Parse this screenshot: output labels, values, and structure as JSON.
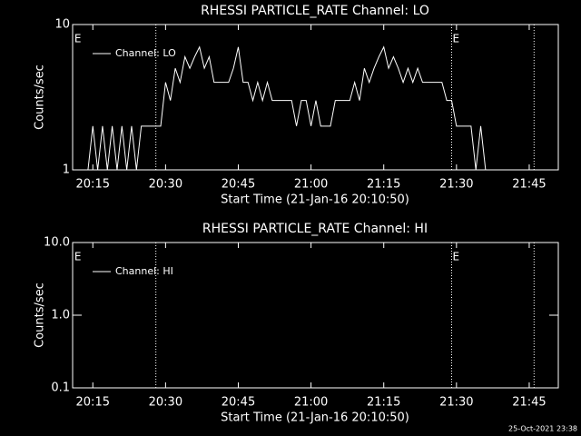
{
  "chart_data": [
    {
      "type": "line",
      "title": "RHESSI PARTICLE_RATE Channel: LO",
      "xlabel": "Start Time (21-Jan-16 20:10:50)",
      "ylabel": "Counts/sec",
      "log_y": true,
      "ylim": [
        1,
        10
      ],
      "yticks": [
        1,
        10
      ],
      "xlim": [
        "20:10:50",
        "21:51"
      ],
      "xticks": [
        "20:15",
        "20:30",
        "20:45",
        "21:00",
        "21:15",
        "21:30",
        "21:45"
      ],
      "legend": "upper left",
      "vlines": [
        "20:28",
        "21:29",
        "21:46"
      ],
      "annotations": [
        {
          "text": "E",
          "x": "20:11"
        },
        {
          "text": "E",
          "x": "21:29"
        }
      ],
      "series": [
        {
          "name": "Channel: LO",
          "color": "#ffffff",
          "x": [
            "20:14",
            "20:15",
            "20:16",
            "20:17",
            "20:18",
            "20:19",
            "20:20",
            "20:21",
            "20:22",
            "20:23",
            "20:24",
            "20:25",
            "20:26",
            "20:27",
            "20:28",
            "20:29",
            "20:30",
            "20:31",
            "20:32",
            "20:33",
            "20:34",
            "20:35",
            "20:36",
            "20:37",
            "20:38",
            "20:39",
            "20:40",
            "20:41",
            "20:42",
            "20:43",
            "20:44",
            "20:45",
            "20:46",
            "20:47",
            "20:48",
            "20:49",
            "20:50",
            "20:51",
            "20:52",
            "20:53",
            "20:54",
            "20:55",
            "20:56",
            "20:57",
            "20:58",
            "20:59",
            "21:00",
            "21:01",
            "21:02",
            "21:03",
            "21:04",
            "21:05",
            "21:06",
            "21:07",
            "21:08",
            "21:09",
            "21:10",
            "21:11",
            "21:12",
            "21:13",
            "21:14",
            "21:15",
            "21:16",
            "21:17",
            "21:18",
            "21:19",
            "21:20",
            "21:21",
            "21:22",
            "21:23",
            "21:24",
            "21:25",
            "21:26",
            "21:27",
            "21:28",
            "21:29",
            "21:30",
            "21:31",
            "21:32",
            "21:33",
            "21:34",
            "21:35",
            "21:36"
          ],
          "values": [
            1,
            2,
            1,
            2,
            1,
            2,
            1,
            2,
            1,
            2,
            1,
            2,
            2,
            2,
            2,
            2,
            4,
            3,
            5,
            4,
            6,
            5,
            6,
            7,
            5,
            6,
            4,
            4,
            4,
            4,
            5,
            7,
            4,
            4,
            3,
            4,
            3,
            4,
            3,
            3,
            3,
            3,
            3,
            2,
            3,
            3,
            2,
            3,
            2,
            2,
            2,
            3,
            3,
            3,
            3,
            4,
            3,
            5,
            4,
            5,
            6,
            7,
            5,
            6,
            5,
            4,
            5,
            4,
            5,
            4,
            4,
            4,
            4,
            4,
            3,
            3,
            2,
            2,
            2,
            2,
            1,
            2,
            1
          ]
        }
      ]
    },
    {
      "type": "line",
      "title": "RHESSI PARTICLE_RATE Channel: HI",
      "xlabel": "Start Time (21-Jan-16 20:10:50)",
      "ylabel": "Counts/sec",
      "log_y": true,
      "ylim": [
        0.1,
        10
      ],
      "yticks": [
        0.1,
        {
          "value": 1,
          "label": "1.0"
        },
        {
          "value": 10,
          "label": "10.0"
        }
      ],
      "xlim": [
        "20:10:50",
        "21:51"
      ],
      "xticks": [
        "20:15",
        "20:30",
        "20:45",
        "21:00",
        "21:15",
        "21:30",
        "21:45"
      ],
      "legend": "upper left",
      "vlines": [
        "20:28",
        "21:29",
        "21:46"
      ],
      "annotations": [
        {
          "text": "E",
          "x": "20:11"
        },
        {
          "text": "E",
          "x": "21:29"
        }
      ],
      "series": [
        {
          "name": "Channel: HI",
          "color": "#ffffff",
          "x": [],
          "values": []
        }
      ]
    }
  ],
  "footer": "25-Oct-2021 23:38"
}
